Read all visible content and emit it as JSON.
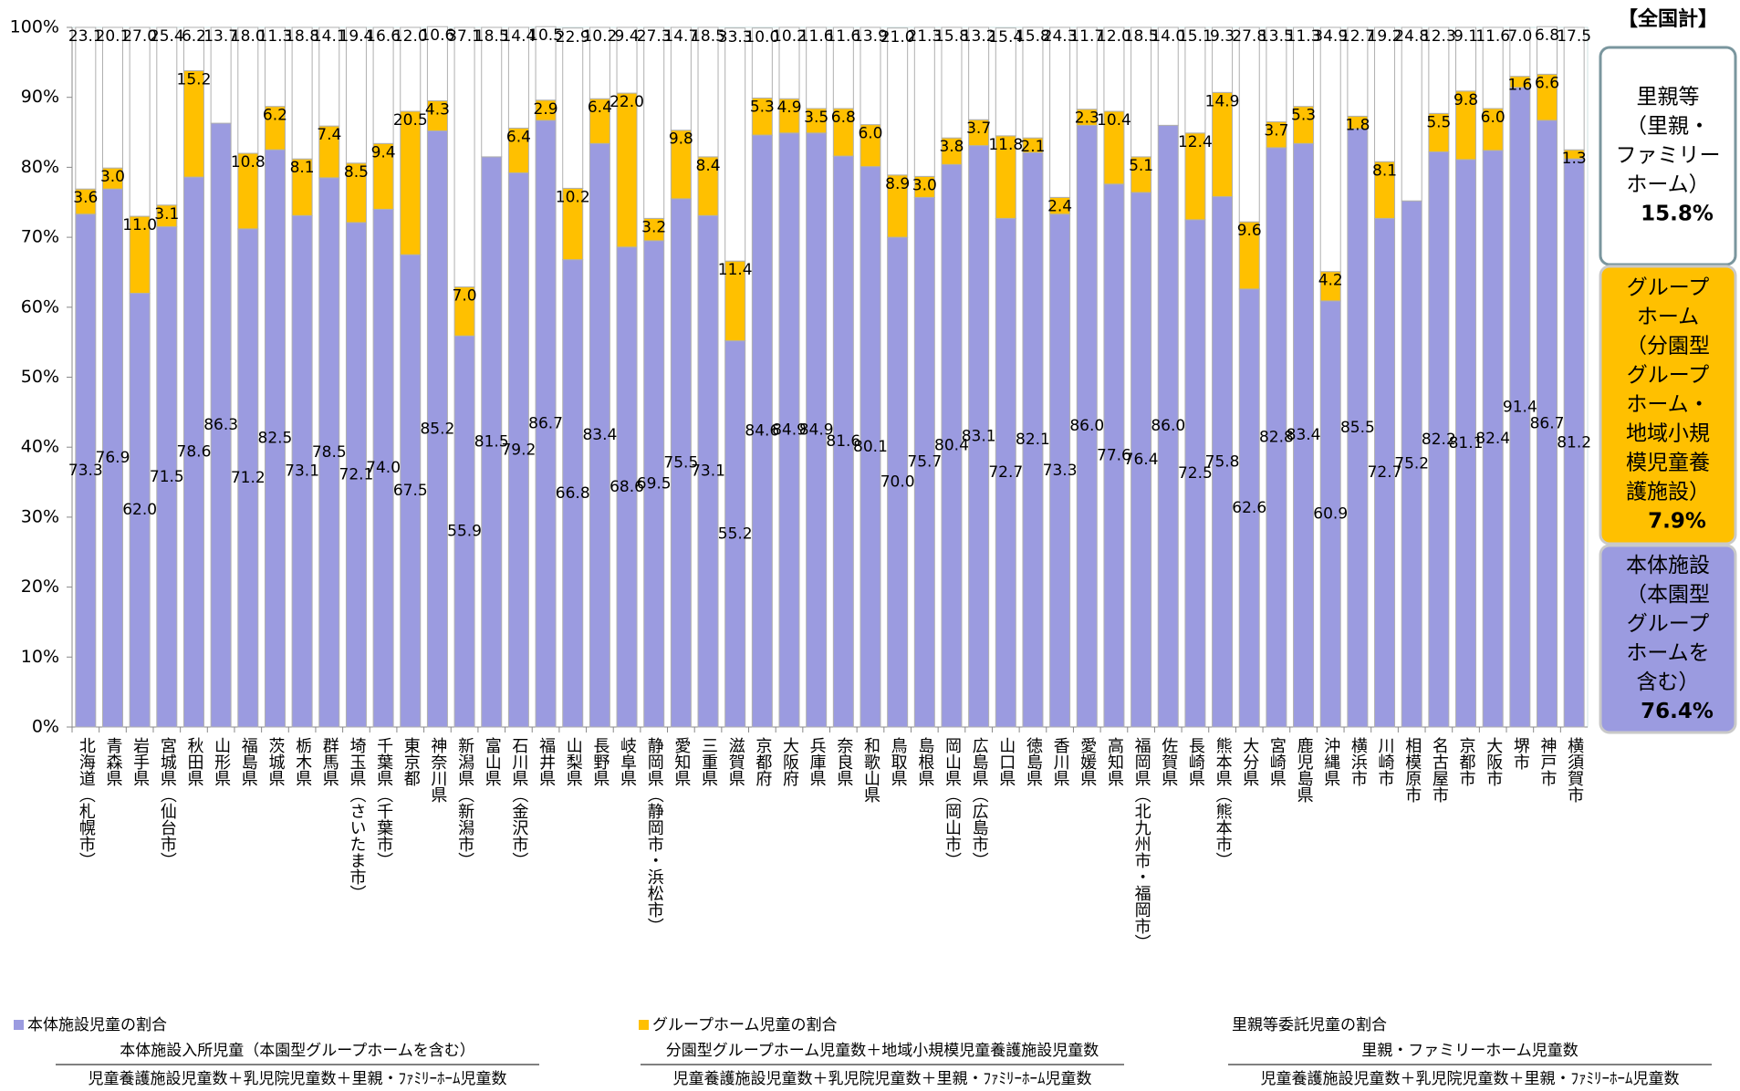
{
  "chart_data": {
    "type": "stacked_bar",
    "categories": [
      "北海道（札幌市）",
      "青森県",
      "岩手県",
      "宮城県（仙台市）",
      "秋田県",
      "山形県",
      "福島県",
      "茨城県",
      "栃木県",
      "群馬県",
      "埼玉県（さいたま市）",
      "千葉県（千葉市）",
      "東京都",
      "神奈川県",
      "新潟県（新潟市）",
      "富山県",
      "石川県（金沢市）",
      "福井県",
      "山梨県",
      "長野県",
      "岐阜県",
      "静岡県（静岡市・浜松市）",
      "愛知県",
      "三重県",
      "滋賀県",
      "京都府",
      "大阪府",
      "兵庫県",
      "奈良県",
      "和歌山県",
      "鳥取県",
      "島根県",
      "岡山県（岡山市）",
      "広島県（広島市）",
      "山口県",
      "徳島県",
      "香川県",
      "愛媛県",
      "高知県",
      "福岡県（北九州市・福岡市）",
      "佐賀県",
      "長崎県",
      "熊本県（熊本市）",
      "大分県",
      "宮崎県",
      "鹿児島県",
      "沖縄県",
      "横浜市",
      "川崎市",
      "相模原市",
      "名古屋市",
      "京都市",
      "大阪市",
      "堺市",
      "神戸市",
      "横須賀市"
    ],
    "series": [
      {
        "name": "本体施設児童の割合",
        "numerator": "本体施設入所児童（本園型グループホームを含む）",
        "denominator": "児童養護施設児童数＋乳児院児童数＋里親・ﾌｧﾐﾘｰﾎｰﾑ児童数",
        "color": "#9b9be0",
        "values": [
          73.3,
          76.9,
          62.0,
          71.5,
          78.6,
          86.3,
          71.2,
          82.5,
          73.1,
          78.5,
          72.1,
          74.0,
          67.5,
          85.2,
          55.9,
          81.5,
          79.2,
          86.7,
          66.8,
          83.4,
          68.6,
          69.5,
          75.5,
          73.1,
          55.2,
          84.6,
          84.9,
          84.9,
          81.6,
          80.1,
          70.0,
          75.7,
          80.4,
          83.1,
          72.7,
          82.1,
          73.3,
          86.0,
          77.6,
          76.4,
          86.0,
          72.5,
          75.8,
          62.6,
          82.8,
          83.4,
          60.9,
          85.5,
          72.7,
          75.2,
          82.2,
          81.1,
          82.4,
          91.4,
          86.7,
          81.2
        ],
        "value_labels": [
          "73.3",
          "76.9",
          "62.0",
          "71.5",
          "78.6",
          "86.3",
          "71.2",
          "82.5",
          "73.1",
          "78.5",
          "72.1",
          "74.0",
          "67.5",
          "85.2",
          "55.9",
          "81.5",
          "79.2",
          "86.7",
          "66.8",
          "83.4",
          "68.6",
          "69.5",
          "75.5",
          "73.1",
          "55.2",
          "84.6",
          "84.9",
          "84.9",
          "81.6",
          "80.1",
          "70.0",
          "75.7",
          "80.4",
          "83.1",
          "72.7",
          "82.1",
          "73.3",
          "86.0",
          "77.6",
          "76.4",
          "86.0",
          "72.5",
          "75.8",
          "62.6",
          "82.8",
          "83.4",
          "60.9",
          "85.5",
          "72.7",
          "75.2",
          "82.2",
          "81.1",
          "82.4",
          "91.4",
          "86.7",
          "81.2"
        ]
      },
      {
        "name": "グループホーム児童の割合",
        "numerator": "分園型グループホーム児童数＋地域小規模児童養護施設児童数",
        "denominator": "児童養護施設児童数＋乳児院児童数＋里親・ﾌｧﾐﾘｰﾎｰﾑ児童数",
        "color": "#ffc000",
        "values": [
          3.6,
          3.0,
          11.0,
          3.1,
          15.2,
          null,
          10.8,
          6.2,
          8.1,
          7.4,
          8.5,
          9.4,
          20.5,
          4.3,
          7.0,
          null,
          6.4,
          2.9,
          10.2,
          6.4,
          22.0,
          3.2,
          9.8,
          8.4,
          11.4,
          5.3,
          4.9,
          3.5,
          6.8,
          6.0,
          8.9,
          3.0,
          3.8,
          3.7,
          11.8,
          2.1,
          2.4,
          2.3,
          10.4,
          5.1,
          null,
          12.4,
          14.9,
          9.6,
          3.7,
          5.3,
          4.2,
          1.8,
          8.1,
          null,
          5.5,
          9.8,
          6.0,
          1.6,
          6.6,
          1.3
        ],
        "value_labels": [
          "3.6",
          "3.0",
          "11.0",
          "3.1",
          "15.2",
          null,
          "10.8",
          "6.2",
          "8.1",
          "7.4",
          "8.5",
          "9.4",
          "20.5",
          "4.3",
          "7.0",
          null,
          "6.4",
          "2.9",
          "10.2",
          "6.4",
          "22.0",
          "3.2",
          "9.8",
          "8.4",
          "11.4",
          "5.3",
          "4.9",
          "3.5",
          "6.8",
          "6.0",
          "8.9",
          "3.0",
          "3.8",
          "3.7",
          "11.8",
          "2.1",
          "2.4",
          "2.3",
          "10.4",
          "5.1",
          null,
          "12.4",
          "14.9",
          "9.6",
          "3.7",
          "5.3",
          "4.2",
          "1.8",
          "8.1",
          null,
          "5.5",
          "9.8",
          "6.0",
          "1.6",
          "6.6",
          "1.3"
        ]
      },
      {
        "name": "里親等委託児童の割合",
        "numerator": "里親・ファミリーホーム児童数",
        "denominator": "児童養護施設児童数＋乳児院児童数＋里親・ﾌｧﾐﾘｰﾎｰﾑ児童数",
        "color": "#ffffff",
        "values": [
          23.1,
          20.1,
          27.0,
          25.4,
          6.2,
          13.7,
          18.0,
          11.3,
          18.8,
          14.1,
          19.4,
          16.6,
          12.0,
          10.6,
          37.1,
          18.5,
          14.4,
          10.5,
          22.9,
          10.2,
          9.4,
          27.3,
          14.7,
          18.5,
          33.3,
          10.0,
          10.2,
          11.6,
          11.6,
          13.9,
          21.0,
          21.3,
          15.8,
          13.2,
          15.4,
          15.8,
          24.3,
          11.7,
          12.0,
          18.5,
          14.0,
          15.1,
          9.3,
          27.8,
          13.5,
          11.3,
          34.9,
          12.7,
          19.2,
          24.8,
          12.3,
          9.1,
          11.6,
          7.0,
          6.8,
          17.5
        ],
        "value_labels": [
          "23.1",
          "20.1",
          "27.0",
          "25.4",
          "6.2",
          "13.7",
          "18.0",
          "11.3",
          "18.8",
          "14.1",
          "19.4",
          "16.6",
          "12.0",
          "10.6",
          "37.1",
          "18.5",
          "14.4",
          "10.5",
          "22.9",
          "10.2",
          "9.4",
          "27.3",
          "14.7",
          "18.5",
          "33.3",
          "10.0",
          "10.2",
          "11.6",
          "11.6",
          "13.9",
          "21.0",
          "21.3",
          "15.8",
          "13.2",
          "15.4",
          "15.8",
          "24.3",
          "11.7",
          "12.0",
          "18.5",
          "14.0",
          "15.1",
          "9.3",
          "27.8",
          "13.5",
          "11.3",
          "34.9",
          "12.7",
          "19.2",
          "24.8",
          "12.3",
          "9.1",
          "11.6",
          "7.0",
          "6.8",
          "17.5"
        ]
      }
    ],
    "ylim": [
      0,
      100
    ],
    "yticks": [
      {
        "value": 0,
        "label": "0%"
      },
      {
        "value": 10,
        "label": "10%"
      },
      {
        "value": 20,
        "label": "20%"
      },
      {
        "value": 30,
        "label": "30%"
      },
      {
        "value": 40,
        "label": "40%"
      },
      {
        "value": 50,
        "label": "50%"
      },
      {
        "value": 60,
        "label": "60%"
      },
      {
        "value": 70,
        "label": "70%"
      },
      {
        "value": 80,
        "label": "80%"
      },
      {
        "value": 90,
        "label": "90%"
      },
      {
        "value": 100,
        "label": "100%"
      }
    ],
    "grid": false,
    "summary": {
      "title": "【全国計】",
      "boxes": [
        {
          "lines": [
            "里親等",
            "（里親・",
            "ファミリー",
            "ホーム）"
          ],
          "total": "15.8%",
          "color": "#ffffff",
          "border": "#7a969e"
        },
        {
          "lines": [
            "グループ",
            "ホーム",
            "（分園型",
            "グループ",
            "ホーム・",
            "地域小規",
            "模児童養",
            "護施設）"
          ],
          "total": "7.9%",
          "color": "#ffc000",
          "border": "#c9c9c9"
        },
        {
          "lines": [
            "本体施設",
            "（本園型",
            "グループ",
            "ホームを",
            "含む）"
          ],
          "total": "76.4%",
          "color": "#9b9be0",
          "border": "#c9c9c9"
        }
      ]
    }
  }
}
